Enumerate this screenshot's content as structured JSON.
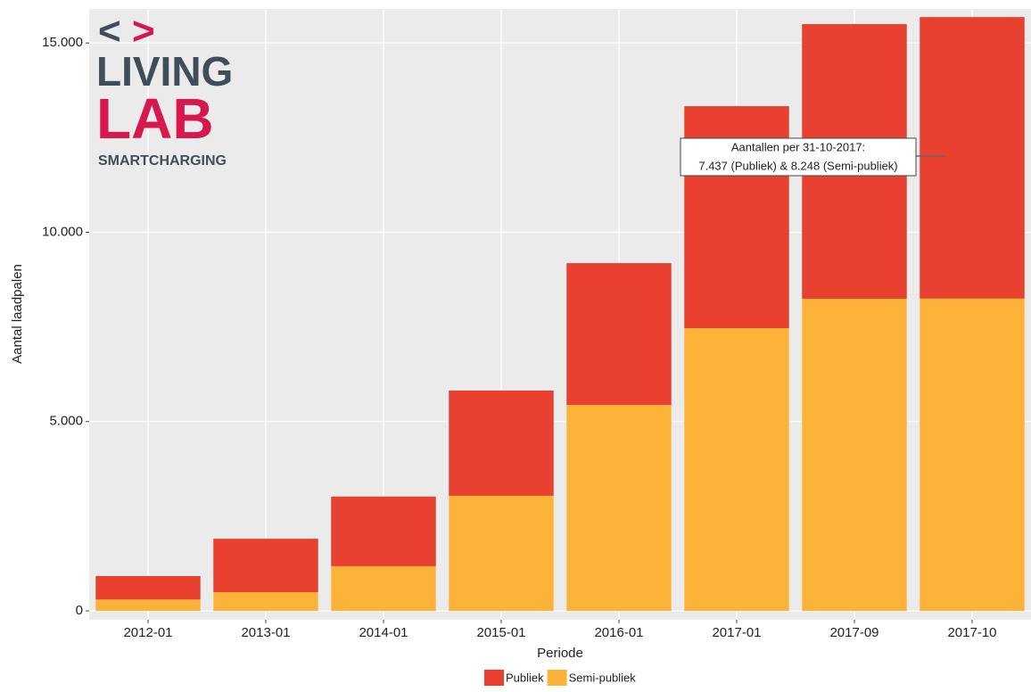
{
  "chart_data": {
    "type": "stacked_bar",
    "y_label": "Aantal laadpalen",
    "x_label": "Periode",
    "categories": [
      "2012-01",
      "2013-01",
      "2014-01",
      "2015-01",
      "2016-01",
      "2017-01",
      "2017-09",
      "2017-10"
    ],
    "series": [
      {
        "name": "Semi-publiek",
        "color": "#fdb23a",
        "values": [
          300,
          495,
          1180,
          3040,
          5440,
          7466,
          8243,
          8248
        ]
      },
      {
        "name": "Publiek",
        "color": "#e8412f",
        "values": [
          620,
          1410,
          1840,
          2780,
          3745,
          5865,
          7255,
          7437
        ]
      }
    ],
    "legend_order": [
      1,
      0
    ],
    "ylim": [
      -235,
      15900
    ],
    "yticks": [
      0,
      {
        "value": 5000,
        "label": "5.000"
      },
      {
        "value": 10000,
        "label": "10.000"
      },
      {
        "value": 15000,
        "label": "15.000"
      }
    ],
    "grid": true,
    "annotations": [
      "Aantallen per 31-10-2017:",
      "7.437 (Publiek) & 8.248 (Semi-publiek)"
    ]
  },
  "logo": {
    "left": "<",
    "right": ">",
    "line1": "LIVING",
    "line2": "LAB",
    "line3": "SMARTCHARGING"
  }
}
